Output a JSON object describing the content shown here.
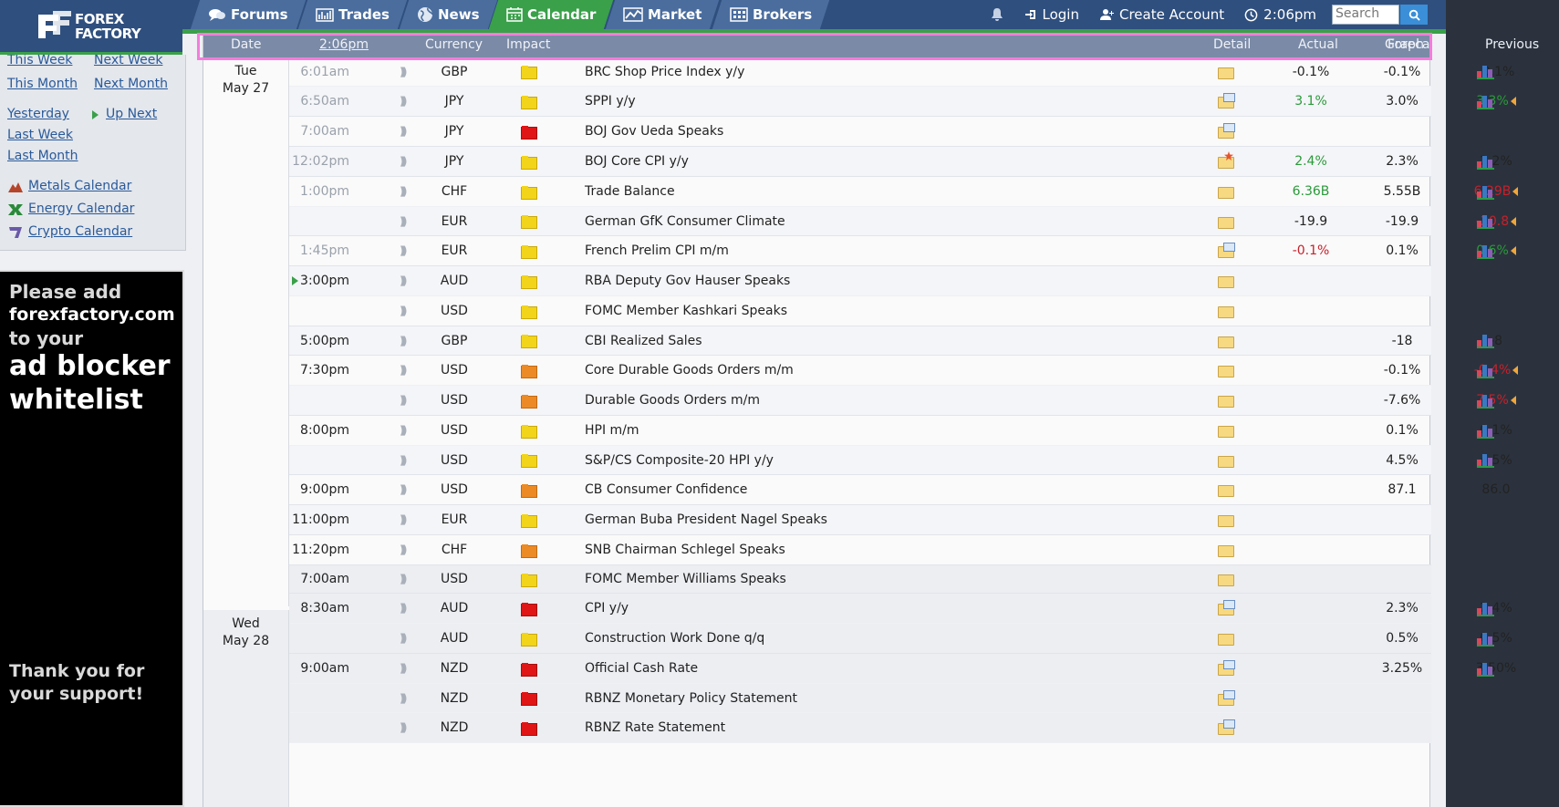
{
  "logo": {
    "line1": "FOREX",
    "line2": "FACTORY"
  },
  "nav": {
    "tabs": [
      {
        "label": "Forums",
        "icon": "chat-bubbles-icon"
      },
      {
        "label": "Trades",
        "icon": "bar-chart-icon"
      },
      {
        "label": "News",
        "icon": "globe-icon"
      },
      {
        "label": "Calendar",
        "icon": "calendar-icon",
        "active": true
      },
      {
        "label": "Market",
        "icon": "line-chart-icon"
      },
      {
        "label": "Brokers",
        "icon": "building-icon"
      }
    ],
    "login": "Login",
    "create_account": "Create Account",
    "time": "2:06pm",
    "search_placeholder": "Search"
  },
  "sidebar": {
    "this_week": "This Week",
    "next_week": "Next Week",
    "this_month": "This Month",
    "next_month": "Next Month",
    "yesterday": "Yesterday",
    "up_next": "Up Next",
    "last_week": "Last Week",
    "last_month": "Last Month",
    "metals": "Metals Calendar",
    "energy": "Energy Calendar",
    "crypto": "Crypto Calendar"
  },
  "ad": {
    "line1": "Please add",
    "line2": "forexfactory.com",
    "line3": "to your",
    "line4": "ad blocker",
    "line5": "whitelist",
    "line6": "Thank you for",
    "line7": "your support!"
  },
  "header": {
    "date": "Date",
    "time": "2:06pm",
    "currency": "Currency",
    "impact": "Impact",
    "detail": "Detail",
    "actual": "Actual",
    "forecast": "Forecast",
    "previous": "Previous",
    "graph": "Graph"
  },
  "days": [
    {
      "day": "Tue",
      "date": "May 27"
    },
    {
      "day": "Wed",
      "date": "May 28"
    }
  ],
  "colors": {
    "accent_green": "#3aa04a",
    "nav_blue": "#2f4f7e",
    "header_bar": "#7b8aa6",
    "highlight": "#f37ddb"
  },
  "events": [
    {
      "time": "6:01am",
      "past": true,
      "currency": "GBP",
      "impact": "yellow",
      "event": "BRC Shop Price Index y/y",
      "detail": "folder",
      "actual": "-0.1%",
      "actual_color": "",
      "forecast": "-0.1%",
      "previous": "-0.1%",
      "previous_color": "",
      "revised": false,
      "graph": true
    },
    {
      "time": "6:50am",
      "past": true,
      "currency": "JPY",
      "impact": "yellow",
      "event": "SPPI y/y",
      "detail": "doc",
      "actual": "3.1%",
      "actual_color": "green",
      "forecast": "3.0%",
      "previous": "3.3%",
      "previous_color": "green",
      "revised": true,
      "graph": true
    },
    {
      "time": "7:00am",
      "past": true,
      "currency": "JPY",
      "impact": "red",
      "event": "BOJ Gov Ueda Speaks",
      "detail": "doc",
      "actual": "",
      "actual_color": "",
      "forecast": "",
      "previous": "",
      "previous_color": "",
      "revised": false,
      "graph": false
    },
    {
      "time": "12:02pm",
      "past": true,
      "currency": "JPY",
      "impact": "yellow",
      "event": "BOJ Core CPI y/y",
      "detail": "star",
      "actual": "2.4%",
      "actual_color": "green",
      "forecast": "2.3%",
      "previous": "2.2%",
      "previous_color": "",
      "revised": false,
      "graph": true
    },
    {
      "time": "1:00pm",
      "past": true,
      "currency": "CHF",
      "impact": "yellow",
      "event": "Trade Balance",
      "detail": "folder",
      "actual": "6.36B",
      "actual_color": "green",
      "forecast": "5.55B",
      "previous": "6.29B",
      "previous_color": "red",
      "revised": true,
      "graph": true
    },
    {
      "time": "",
      "past": true,
      "currency": "EUR",
      "impact": "yellow",
      "event": "German GfK Consumer Climate",
      "detail": "folder",
      "actual": "-19.9",
      "actual_color": "",
      "forecast": "-19.9",
      "previous": "-20.8",
      "previous_color": "red",
      "revised": true,
      "graph": true
    },
    {
      "time": "1:45pm",
      "past": true,
      "currency": "EUR",
      "impact": "yellow",
      "event": "French Prelim CPI m/m",
      "detail": "doc",
      "actual": "-0.1%",
      "actual_color": "red",
      "forecast": "0.1%",
      "previous": "0.6%",
      "previous_color": "green",
      "revised": true,
      "graph": true
    },
    {
      "time": "3:00pm",
      "past": false,
      "upnext": true,
      "currency": "AUD",
      "impact": "yellow",
      "event": "RBA Deputy Gov Hauser Speaks",
      "detail": "folder",
      "actual": "",
      "actual_color": "",
      "forecast": "",
      "previous": "",
      "previous_color": "",
      "revised": false,
      "graph": false
    },
    {
      "time": "",
      "past": false,
      "currency": "USD",
      "impact": "yellow",
      "event": "FOMC Member Kashkari Speaks",
      "detail": "folder",
      "actual": "",
      "actual_color": "",
      "forecast": "",
      "previous": "",
      "previous_color": "",
      "revised": false,
      "graph": false
    },
    {
      "time": "5:00pm",
      "past": false,
      "currency": "GBP",
      "impact": "yellow",
      "event": "CBI Realized Sales",
      "detail": "folder",
      "actual": "",
      "actual_color": "",
      "forecast": "-18",
      "previous": "-8",
      "previous_color": "",
      "revised": false,
      "graph": true
    },
    {
      "time": "7:30pm",
      "past": false,
      "currency": "USD",
      "impact": "orange",
      "event": "Core Durable Goods Orders m/m",
      "detail": "folder",
      "actual": "",
      "actual_color": "",
      "forecast": "-0.1%",
      "previous": "-0.4%",
      "previous_color": "red",
      "revised": true,
      "graph": true
    },
    {
      "time": "",
      "past": false,
      "currency": "USD",
      "impact": "orange",
      "event": "Durable Goods Orders m/m",
      "detail": "folder",
      "actual": "",
      "actual_color": "",
      "forecast": "-7.6%",
      "previous": "7.5%",
      "previous_color": "red",
      "revised": true,
      "graph": true
    },
    {
      "time": "8:00pm",
      "past": false,
      "currency": "USD",
      "impact": "yellow",
      "event": "HPI m/m",
      "detail": "folder",
      "actual": "",
      "actual_color": "",
      "forecast": "0.1%",
      "previous": "0.1%",
      "previous_color": "",
      "revised": false,
      "graph": true
    },
    {
      "time": "",
      "past": false,
      "currency": "USD",
      "impact": "yellow",
      "event": "S&P/CS Composite-20 HPI y/y",
      "detail": "folder",
      "actual": "",
      "actual_color": "",
      "forecast": "4.5%",
      "previous": "4.5%",
      "previous_color": "",
      "revised": false,
      "graph": true
    },
    {
      "time": "9:00pm",
      "past": false,
      "currency": "USD",
      "impact": "orange",
      "event": "CB Consumer Confidence",
      "detail": "folder",
      "actual": "",
      "actual_color": "",
      "forecast": "87.1",
      "previous": "86.0",
      "previous_color": "",
      "revised": false,
      "graph": false
    },
    {
      "time": "11:00pm",
      "past": false,
      "currency": "EUR",
      "impact": "yellow",
      "event": "German Buba President Nagel Speaks",
      "detail": "folder",
      "actual": "",
      "actual_color": "",
      "forecast": "",
      "previous": "",
      "previous_color": "",
      "revised": false,
      "graph": false
    },
    {
      "time": "11:20pm",
      "past": false,
      "currency": "CHF",
      "impact": "orange",
      "event": "SNB Chairman Schlegel Speaks",
      "detail": "folder",
      "actual": "",
      "actual_color": "",
      "forecast": "",
      "previous": "",
      "previous_color": "",
      "revised": false,
      "graph": false
    },
    {
      "time": "7:00am",
      "past": false,
      "day2": true,
      "currency": "USD",
      "impact": "yellow",
      "event": "FOMC Member Williams Speaks",
      "detail": "folder",
      "actual": "",
      "actual_color": "",
      "forecast": "",
      "previous": "",
      "previous_color": "",
      "revised": false,
      "graph": false
    },
    {
      "time": "8:30am",
      "past": false,
      "day2": true,
      "currency": "AUD",
      "impact": "red",
      "event": "CPI y/y",
      "detail": "doc",
      "actual": "",
      "actual_color": "",
      "forecast": "2.3%",
      "previous": "2.4%",
      "previous_color": "",
      "revised": false,
      "graph": true
    },
    {
      "time": "",
      "past": false,
      "day2": true,
      "currency": "AUD",
      "impact": "yellow",
      "event": "Construction Work Done q/q",
      "detail": "folder",
      "actual": "",
      "actual_color": "",
      "forecast": "0.5%",
      "previous": "0.5%",
      "previous_color": "",
      "revised": false,
      "graph": true
    },
    {
      "time": "9:00am",
      "past": false,
      "day2": true,
      "currency": "NZD",
      "impact": "red",
      "event": "Official Cash Rate",
      "detail": "doc",
      "actual": "",
      "actual_color": "",
      "forecast": "3.25%",
      "previous": "3.50%",
      "previous_color": "",
      "revised": false,
      "graph": true
    },
    {
      "time": "",
      "past": false,
      "day2": true,
      "currency": "NZD",
      "impact": "red",
      "event": "RBNZ Monetary Policy Statement",
      "detail": "doc",
      "actual": "",
      "actual_color": "",
      "forecast": "",
      "previous": "",
      "previous_color": "",
      "revised": false,
      "graph": false
    },
    {
      "time": "",
      "past": false,
      "day2": true,
      "currency": "NZD",
      "impact": "red",
      "event": "RBNZ Rate Statement",
      "detail": "doc",
      "actual": "",
      "actual_color": "",
      "forecast": "",
      "previous": "",
      "previous_color": "",
      "revised": false,
      "graph": false
    }
  ]
}
